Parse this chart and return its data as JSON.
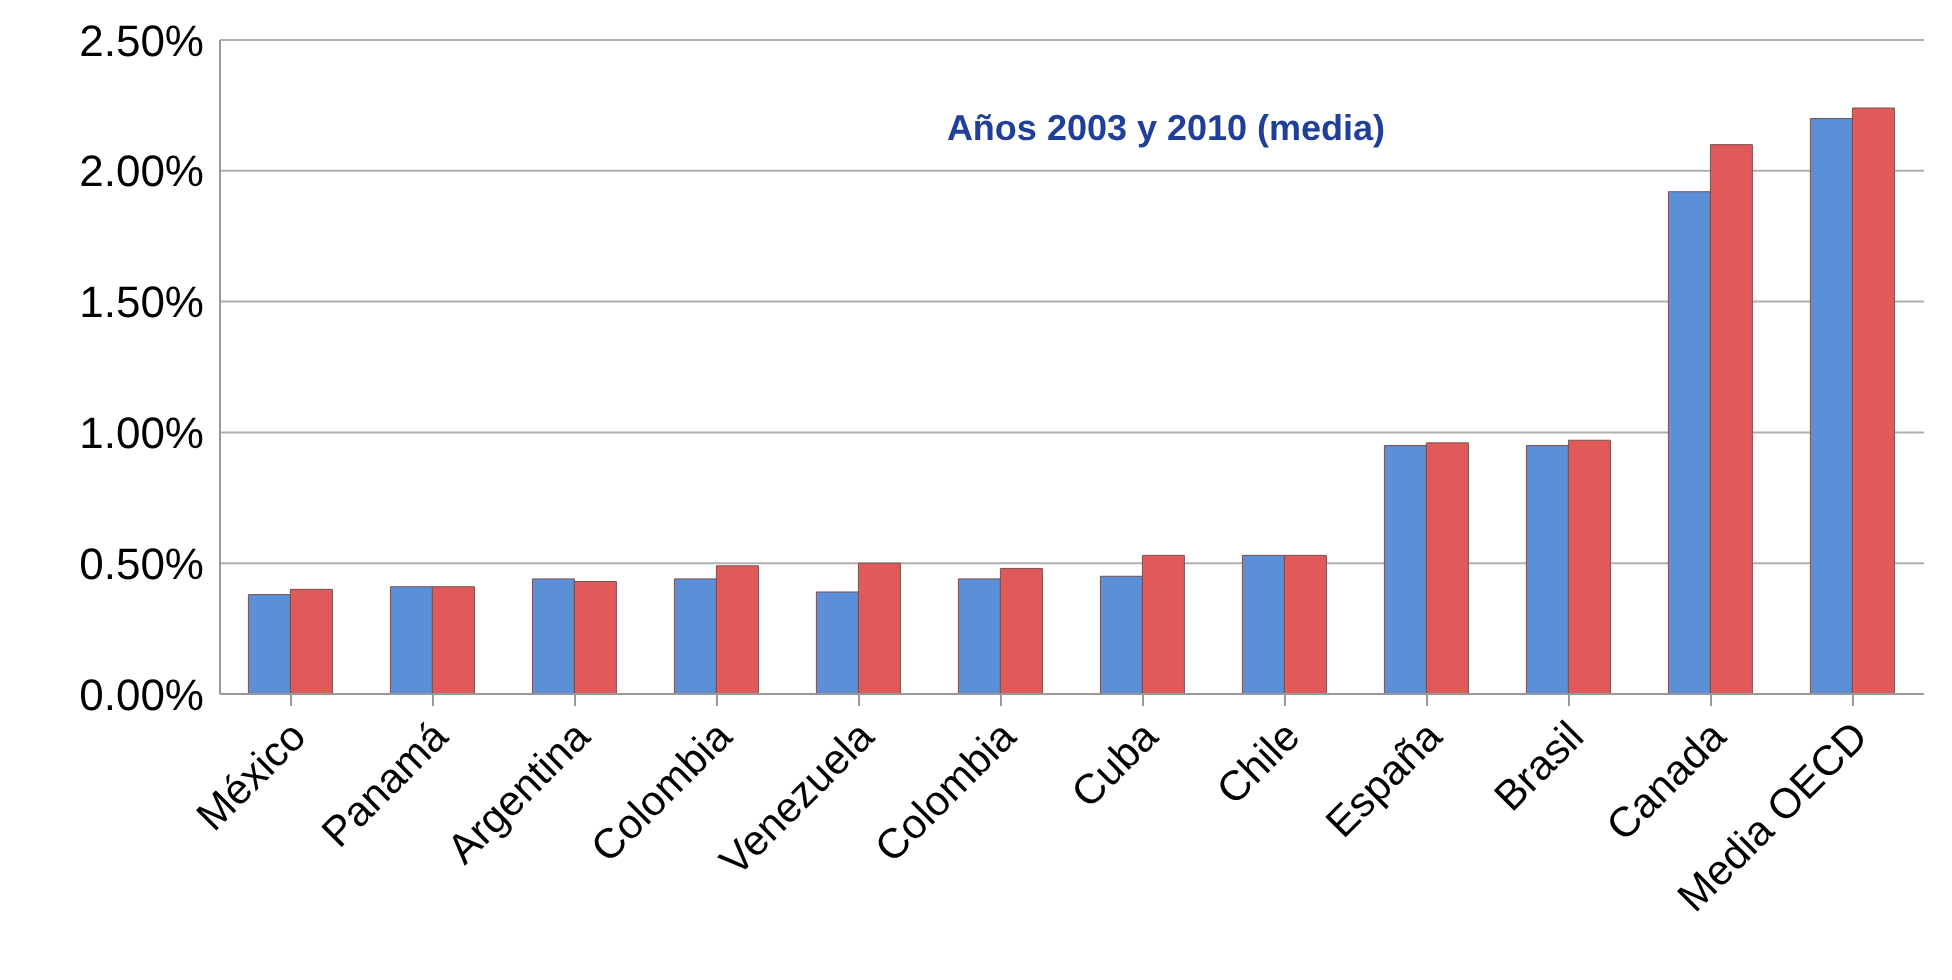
{
  "chart_data": {
    "type": "bar",
    "title": "Años 2003 y 2010 (media)",
    "categories": [
      "México",
      "Panamá",
      "Argentina",
      "Colombia",
      "Venezuela",
      "Colombia",
      "Cuba",
      "Chile",
      "España",
      "Brasil",
      "Canada",
      "Media OECD"
    ],
    "series": [
      {
        "color": "#5b8fd8",
        "values": [
          0.38,
          0.41,
          0.44,
          0.44,
          0.39,
          0.44,
          0.45,
          0.53,
          0.95,
          0.95,
          1.92,
          2.2
        ]
      },
      {
        "color": "#e05a5a",
        "values": [
          0.4,
          0.41,
          0.43,
          0.49,
          0.5,
          0.48,
          0.53,
          0.53,
          0.96,
          0.97,
          2.1,
          2.24
        ]
      }
    ],
    "ylim": [
      0,
      2.5
    ],
    "yticks": [
      {
        "value": 0,
        "label": "0.00%"
      },
      {
        "value": 0.5,
        "label": "0.50%"
      },
      {
        "value": 1,
        "label": "1.00%"
      },
      {
        "value": 1.5,
        "label": "1.50%"
      },
      {
        "value": 2,
        "label": "2.00%"
      },
      {
        "value": 2.5,
        "label": "2.50%"
      }
    ],
    "grid": "y",
    "legend": false
  }
}
